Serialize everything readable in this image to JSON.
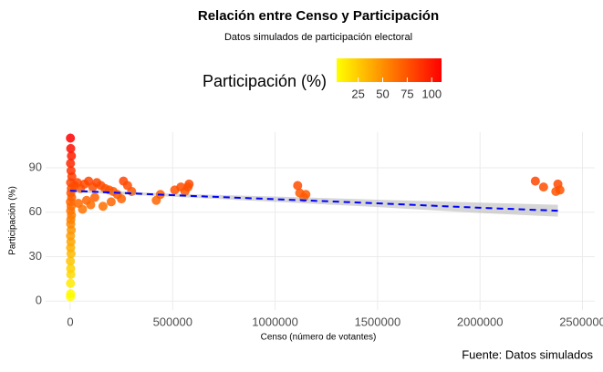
{
  "chart_data": {
    "type": "scatter",
    "title": "Relación entre Censo y Participación",
    "subtitle": "Datos simulados de participación electoral",
    "x_label": "Censo (número de votantes)",
    "y_label": "Participación (%)",
    "caption": "Fuente: Datos simulados",
    "legend_title": "Participación (%)",
    "colorscale": {
      "low": "#FFFF00",
      "high": "#FF0000",
      "lim": [
        3,
        110
      ],
      "ticks": [
        25,
        50,
        75,
        100
      ]
    },
    "xlim": [
      -120000,
      2560000
    ],
    "ylim": [
      -6,
      114
    ],
    "xticks": [
      0,
      500000,
      1000000,
      1500000,
      2000000,
      2500000
    ],
    "yticks": [
      0,
      30,
      60,
      90
    ],
    "grid": true,
    "x": [
      1000,
      2000,
      1500,
      3000,
      2500,
      1000,
      4000,
      2000,
      3500,
      1500,
      5000,
      2500,
      3000,
      6000,
      2000,
      4500,
      1000,
      7000,
      3000,
      5500,
      2000,
      8000,
      4000,
      1500,
      6000,
      2500,
      1000,
      20000,
      35000,
      50000,
      70000,
      90000,
      110000,
      130000,
      150000,
      170000,
      190000,
      210000,
      230000,
      260000,
      280000,
      300000,
      40000,
      80000,
      120000,
      160000,
      200000,
      250000,
      60000,
      100000,
      420000,
      440000,
      510000,
      540000,
      560000,
      580000,
      575000,
      1110000,
      1120000,
      1140000,
      1150000,
      2270000,
      2310000,
      2370000,
      2380000,
      2390000
    ],
    "y": [
      3,
      5,
      12,
      18,
      22,
      27,
      32,
      36,
      40,
      44,
      48,
      52,
      55,
      58,
      61,
      64,
      67,
      70,
      73,
      76,
      80,
      84,
      88,
      93,
      98,
      103,
      110,
      78,
      80,
      76,
      79,
      81,
      77,
      80,
      78,
      76,
      75,
      74,
      72,
      81,
      78,
      74,
      66,
      68,
      70,
      64,
      67,
      69,
      62,
      65,
      68,
      72,
      75,
      77,
      74,
      79,
      77,
      78,
      73,
      70,
      72,
      81,
      77,
      74,
      79,
      75
    ],
    "trend": {
      "x": [
        0,
        500000,
        1000000,
        1500000,
        2000000,
        2380000
      ],
      "y": [
        74.5,
        71.5,
        68.8,
        66,
        63,
        61
      ],
      "lower": [
        73.5,
        70.5,
        67,
        63.5,
        59.5,
        57
      ],
      "upper": [
        75.5,
        72.5,
        70.6,
        68.5,
        66.5,
        65
      ]
    }
  }
}
